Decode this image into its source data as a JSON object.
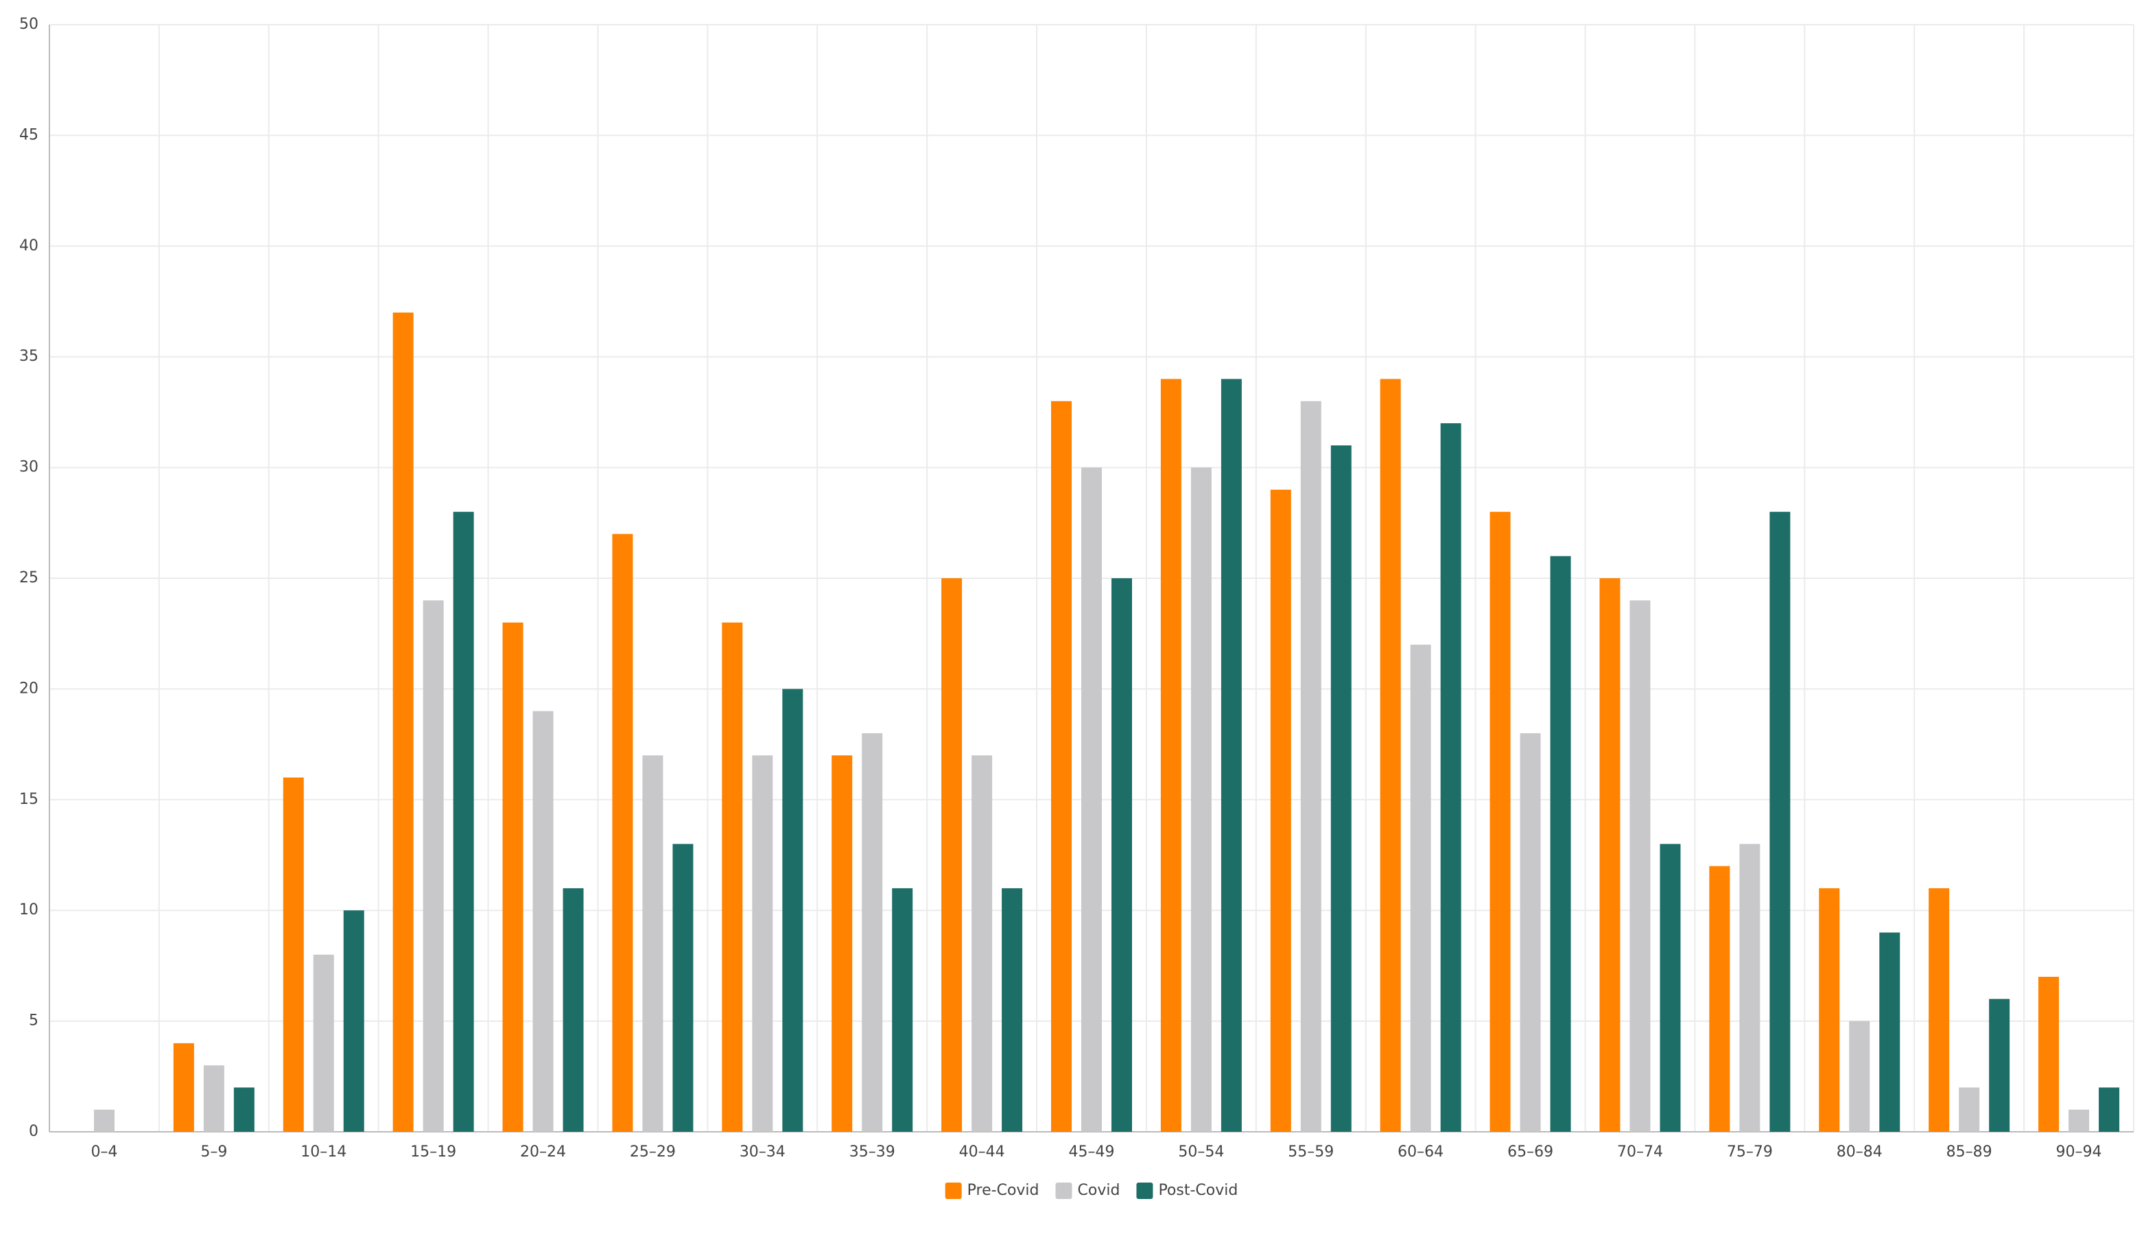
{
  "chart_data": {
    "type": "bar",
    "categories": [
      "0–4",
      "5–9",
      "10–14",
      "15–19",
      "20–24",
      "25–29",
      "30–34",
      "35–39",
      "40–44",
      "45–49",
      "50–54",
      "55–59",
      "60–64",
      "65–69",
      "70–74",
      "75–79",
      "80–84",
      "85–89",
      "90–94"
    ],
    "series": [
      {
        "name": "Pre-Covid",
        "color": "#ff8200",
        "values": [
          0,
          4,
          16,
          37,
          23,
          27,
          23,
          17,
          25,
          33,
          34,
          29,
          34,
          28,
          25,
          12,
          11,
          11,
          7
        ]
      },
      {
        "name": "Covid",
        "color": "#c8c8cb",
        "values": [
          1,
          3,
          8,
          24,
          19,
          17,
          17,
          18,
          17,
          30,
          30,
          33,
          22,
          18,
          24,
          13,
          5,
          2,
          1
        ]
      },
      {
        "name": "Post-Covid",
        "color": "#1e6e68",
        "values": [
          0,
          2,
          10,
          28,
          11,
          13,
          20,
          11,
          11,
          25,
          34,
          31,
          32,
          26,
          13,
          28,
          9,
          6,
          2
        ]
      }
    ],
    "ylim": [
      0,
      50
    ],
    "yticks": [
      0,
      5,
      10,
      15,
      20,
      25,
      30,
      35,
      40,
      45,
      50
    ],
    "grid": true,
    "legend": "bottom"
  }
}
